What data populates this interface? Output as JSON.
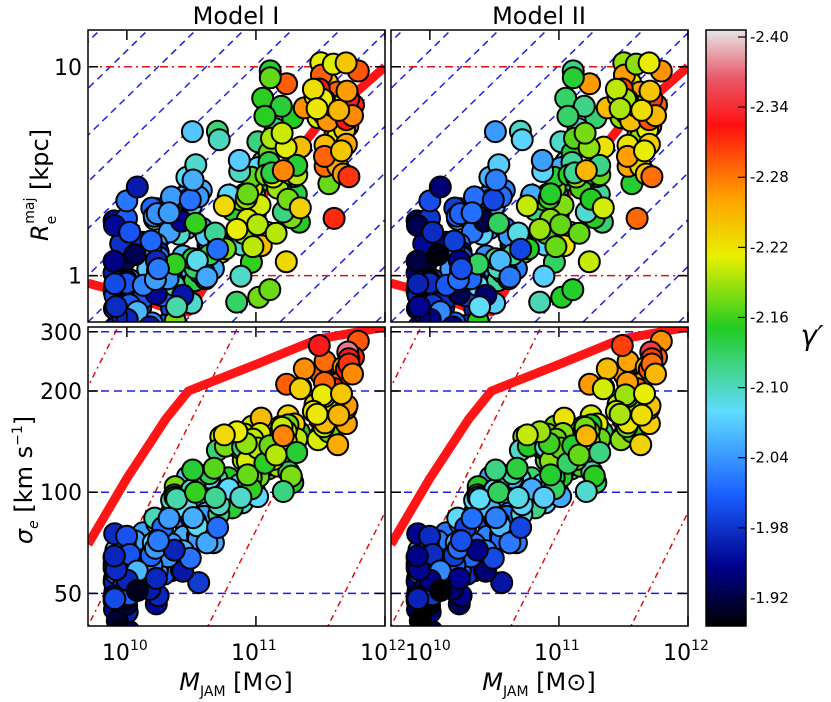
{
  "chart_data": {
    "type": "scatter",
    "panel_titles": [
      "Model I",
      "Model II"
    ],
    "xlabel": "M_JAM [M⊙]",
    "x_scale": "log",
    "xlim": [
      5000000000,
      1000000000000
    ],
    "x_ticks": [
      {
        "value": 10000000000,
        "label": "10",
        "exp": "10"
      },
      {
        "value": 100000000000,
        "label": "10",
        "exp": "11"
      },
      {
        "value": 1000000000000,
        "label": "10",
        "exp": "12"
      }
    ],
    "top_row": {
      "ylabel": "R_e^maj [kpc]",
      "y_scale": "log",
      "ylim": [
        0.6,
        15
      ],
      "y_ticks": [
        {
          "value": 1,
          "label": "1"
        },
        {
          "value": 10,
          "label": "10"
        }
      ],
      "reference_lines": [
        1,
        10
      ],
      "envelope": [
        [
          5000000000.0,
          0.92
        ],
        [
          10000000000.0,
          0.82
        ],
        [
          20000000000.0,
          0.7
        ],
        [
          30000000000.0,
          0.67
        ],
        [
          100000000000.0,
          2.2
        ],
        [
          300000000000.0,
          5.2
        ],
        [
          1000000000000.0,
          10
        ]
      ]
    },
    "bottom_row": {
      "ylabel": "σ_e [km s⁻¹]",
      "y_scale": "log",
      "ylim": [
        40,
        310
      ],
      "y_ticks": [
        {
          "value": 50,
          "label": "50"
        },
        {
          "value": 100,
          "label": "100"
        },
        {
          "value": 200,
          "label": "200"
        },
        {
          "value": 300,
          "label": "300"
        }
      ],
      "reference_lines": [
        50,
        100,
        200,
        300
      ],
      "envelope": [
        [
          5000000000.0,
          70
        ],
        [
          10000000000.0,
          110
        ],
        [
          20000000000.0,
          165
        ],
        [
          30000000000.0,
          200
        ],
        [
          100000000000.0,
          240
        ],
        [
          300000000000.0,
          285
        ],
        [
          1000000000000.0,
          310
        ]
      ]
    },
    "colorbar": {
      "label": "γ′",
      "range": [
        -2.4,
        -1.9
      ],
      "ticks": [
        "-2.40",
        "-2.34",
        "-2.28",
        "-2.22",
        "-2.16",
        "-2.10",
        "-2.04",
        "-1.98",
        "-1.92"
      ]
    },
    "galaxies_note_count": 260
  }
}
